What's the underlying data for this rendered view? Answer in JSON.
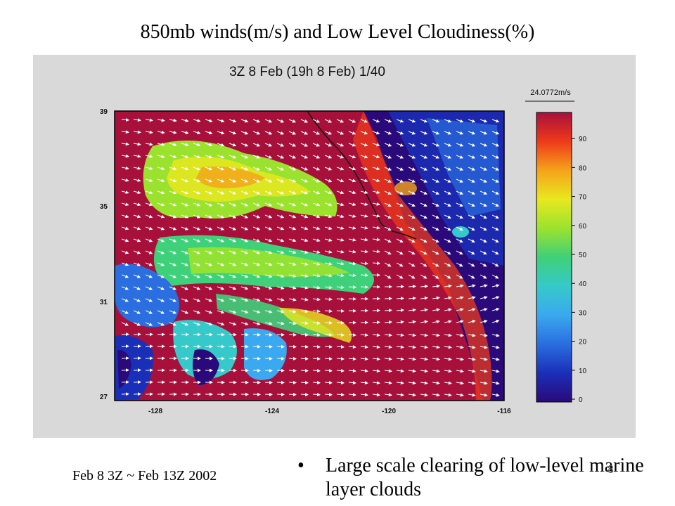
{
  "slide": {
    "title": "850mb winds(m/s) and Low Level Cloudiness(%)",
    "footer_note": "Feb 8 3Z ~ Feb 13Z 2002",
    "bullet": "Large scale clearing of low-level marine layer clouds",
    "page_number": "8"
  },
  "figure": {
    "header": "3Z 8 Feb (19h 8 Feb)    1/40",
    "vector_scale_label": "24.0772m/s",
    "x_ticks": [
      "-128",
      "-124",
      "-120",
      "-116"
    ],
    "y_ticks": [
      "39",
      "35",
      "31",
      "27"
    ],
    "colorbar": {
      "min": 0,
      "max": 100,
      "tick_labels": [
        "90",
        "80",
        "70",
        "60",
        "50",
        "40",
        "30",
        "20",
        "10",
        "0"
      ],
      "colors": [
        "#2a0a7a",
        "#1a2fb8",
        "#2a6ee0",
        "#3aa9ef",
        "#36c9c9",
        "#3fd07a",
        "#9be22e",
        "#e8e81e",
        "#f5a31a",
        "#ee3a1a",
        "#a8103c"
      ]
    },
    "colors": {
      "frame": "#000000",
      "arrow": "#ffffff",
      "coast": "#111111"
    }
  }
}
